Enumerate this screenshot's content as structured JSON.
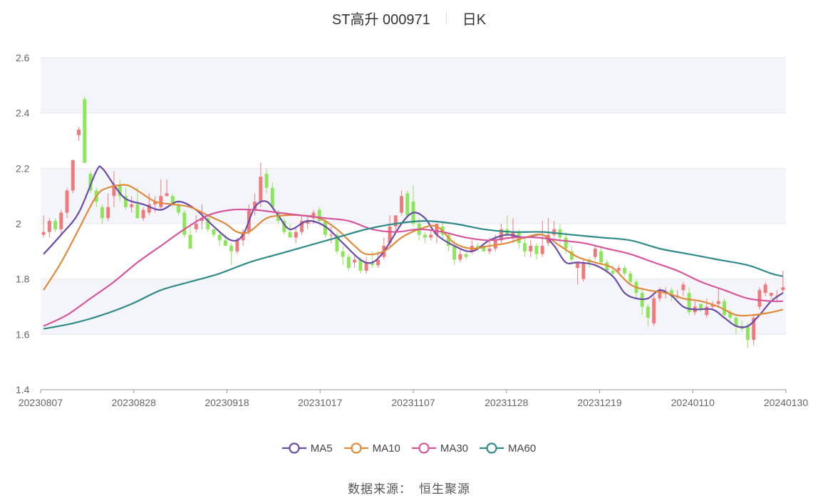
{
  "header": {
    "title": "ST高升 000971",
    "period": "日K"
  },
  "footer": {
    "source_label": "数据来源：",
    "source_name": "恒生聚源"
  },
  "chart_data": {
    "type": "candlestick",
    "title": "ST高升 000971",
    "period": "日K",
    "ylim": [
      1.4,
      2.6
    ],
    "yticks": [
      1.4,
      1.6,
      1.8,
      2,
      2.2,
      2.4,
      2.6
    ],
    "xticks": [
      "20230807",
      "20230828",
      "20230918",
      "20231017",
      "20231107",
      "20231128",
      "20231219",
      "20240110",
      "20240130"
    ],
    "grid": true,
    "legend_position": "bottom",
    "colors": {
      "up": "#f0797b",
      "down": "#8de65a",
      "MA5": "#6b4ba8",
      "MA10": "#e08a3c",
      "MA30": "#d6559c",
      "MA60": "#2f8a88",
      "band": "#f4f5fa",
      "axis": "#999999"
    },
    "series_names": [
      "MA5",
      "MA10",
      "MA30",
      "MA60"
    ],
    "dates": [
      "20230807",
      "20230828",
      "20230918",
      "20231017",
      "20231107",
      "20231128",
      "20231219",
      "20240110",
      "20240130"
    ],
    "moving_averages": {
      "MA5": [
        [
          0,
          1.89
        ],
        [
          3,
          1.96
        ],
        [
          6,
          2.04
        ],
        [
          9,
          2.19
        ],
        [
          10,
          2.2
        ],
        [
          12,
          2.14
        ],
        [
          14,
          2.09
        ],
        [
          17,
          2.07
        ],
        [
          20,
          2.05
        ],
        [
          23,
          2.08
        ],
        [
          26,
          2.05
        ],
        [
          29,
          1.99
        ],
        [
          32,
          1.94
        ],
        [
          34,
          1.96
        ],
        [
          36,
          2.06
        ],
        [
          38,
          2.08
        ],
        [
          40,
          2.03
        ],
        [
          42,
          1.98
        ],
        [
          45,
          2.01
        ],
        [
          48,
          1.99
        ],
        [
          51,
          1.93
        ],
        [
          54,
          1.87
        ],
        [
          56,
          1.86
        ],
        [
          58,
          1.9
        ],
        [
          61,
          2.0
        ],
        [
          63,
          2.04
        ],
        [
          65,
          2.02
        ],
        [
          67,
          1.96
        ],
        [
          70,
          1.92
        ],
        [
          73,
          1.9
        ],
        [
          76,
          1.94
        ],
        [
          79,
          1.96
        ],
        [
          82,
          1.95
        ],
        [
          85,
          1.96
        ],
        [
          87,
          1.92
        ],
        [
          89,
          1.86
        ],
        [
          91,
          1.86
        ],
        [
          94,
          1.85
        ],
        [
          97,
          1.81
        ],
        [
          99,
          1.75
        ],
        [
          101,
          1.73
        ],
        [
          103,
          1.73
        ],
        [
          105,
          1.76
        ],
        [
          107,
          1.74
        ],
        [
          109,
          1.7
        ],
        [
          111,
          1.69
        ],
        [
          114,
          1.69
        ],
        [
          116,
          1.66
        ],
        [
          118,
          1.63
        ],
        [
          120,
          1.63
        ],
        [
          122,
          1.67
        ],
        [
          124,
          1.72
        ],
        [
          126,
          1.75
        ]
      ],
      "MA10": [
        [
          0,
          1.76
        ],
        [
          3,
          1.86
        ],
        [
          6,
          1.98
        ],
        [
          9,
          2.1
        ],
        [
          11,
          2.13
        ],
        [
          14,
          2.14
        ],
        [
          16,
          2.12
        ],
        [
          19,
          2.08
        ],
        [
          22,
          2.07
        ],
        [
          25,
          2.06
        ],
        [
          28,
          2.03
        ],
        [
          31,
          2.0
        ],
        [
          33,
          1.97
        ],
        [
          35,
          1.97
        ],
        [
          38,
          2.02
        ],
        [
          41,
          2.03
        ],
        [
          44,
          2.03
        ],
        [
          47,
          2.02
        ],
        [
          50,
          1.98
        ],
        [
          53,
          1.92
        ],
        [
          55,
          1.89
        ],
        [
          58,
          1.9
        ],
        [
          61,
          1.95
        ],
        [
          64,
          1.98
        ],
        [
          67,
          1.99
        ],
        [
          70,
          1.93
        ],
        [
          73,
          1.91
        ],
        [
          76,
          1.92
        ],
        [
          79,
          1.93
        ],
        [
          82,
          1.95
        ],
        [
          85,
          1.96
        ],
        [
          88,
          1.92
        ],
        [
          91,
          1.88
        ],
        [
          94,
          1.86
        ],
        [
          97,
          1.84
        ],
        [
          100,
          1.78
        ],
        [
          103,
          1.76
        ],
        [
          106,
          1.75
        ],
        [
          109,
          1.73
        ],
        [
          112,
          1.72
        ],
        [
          115,
          1.7
        ],
        [
          118,
          1.67
        ],
        [
          121,
          1.67
        ],
        [
          124,
          1.68
        ],
        [
          126,
          1.69
        ]
      ],
      "MA30": [
        [
          0,
          1.63
        ],
        [
          4,
          1.67
        ],
        [
          8,
          1.73
        ],
        [
          12,
          1.79
        ],
        [
          16,
          1.86
        ],
        [
          20,
          1.92
        ],
        [
          24,
          1.98
        ],
        [
          28,
          2.03
        ],
        [
          32,
          2.05
        ],
        [
          36,
          2.05
        ],
        [
          40,
          2.04
        ],
        [
          44,
          2.03
        ],
        [
          48,
          2.02
        ],
        [
          52,
          2.01
        ],
        [
          56,
          1.98
        ],
        [
          60,
          1.97
        ],
        [
          64,
          1.98
        ],
        [
          68,
          1.97
        ],
        [
          72,
          1.95
        ],
        [
          76,
          1.94
        ],
        [
          80,
          1.95
        ],
        [
          84,
          1.95
        ],
        [
          88,
          1.94
        ],
        [
          92,
          1.93
        ],
        [
          96,
          1.91
        ],
        [
          100,
          1.89
        ],
        [
          104,
          1.86
        ],
        [
          108,
          1.83
        ],
        [
          112,
          1.79
        ],
        [
          116,
          1.76
        ],
        [
          120,
          1.73
        ],
        [
          124,
          1.72
        ],
        [
          126,
          1.72
        ]
      ],
      "MA60": [
        [
          0,
          1.62
        ],
        [
          5,
          1.64
        ],
        [
          10,
          1.67
        ],
        [
          15,
          1.71
        ],
        [
          20,
          1.76
        ],
        [
          25,
          1.79
        ],
        [
          30,
          1.82
        ],
        [
          35,
          1.86
        ],
        [
          40,
          1.89
        ],
        [
          45,
          1.92
        ],
        [
          50,
          1.95
        ],
        [
          55,
          1.98
        ],
        [
          60,
          2.0
        ],
        [
          65,
          2.01
        ],
        [
          70,
          2.0
        ],
        [
          75,
          1.98
        ],
        [
          80,
          1.97
        ],
        [
          85,
          1.97
        ],
        [
          90,
          1.96
        ],
        [
          95,
          1.95
        ],
        [
          100,
          1.94
        ],
        [
          105,
          1.91
        ],
        [
          110,
          1.89
        ],
        [
          115,
          1.87
        ],
        [
          120,
          1.85
        ],
        [
          124,
          1.82
        ],
        [
          126,
          1.81
        ]
      ]
    },
    "candles": [
      [
        1.96,
        1.97,
        1.95,
        2.03
      ],
      [
        1.97,
        2.01,
        1.95,
        2.02
      ],
      [
        2.01,
        1.98,
        1.97,
        2.02
      ],
      [
        1.98,
        2.04,
        1.96,
        2.05
      ],
      [
        2.04,
        2.12,
        2.02,
        2.13
      ],
      [
        2.12,
        2.23,
        2.11,
        2.23
      ],
      [
        2.32,
        2.34,
        2.3,
        2.35
      ],
      [
        2.45,
        2.22,
        2.22,
        2.46
      ],
      [
        2.18,
        2.12,
        2.11,
        2.19
      ],
      [
        2.12,
        2.08,
        2.06,
        2.13
      ],
      [
        2.06,
        2.02,
        2.0,
        2.07
      ],
      [
        2.02,
        2.06,
        2.01,
        2.11
      ],
      [
        2.1,
        2.14,
        2.06,
        2.19
      ],
      [
        2.14,
        2.1,
        2.08,
        2.16
      ],
      [
        2.1,
        2.06,
        2.05,
        2.13
      ],
      [
        2.06,
        2.07,
        2.04,
        2.1
      ],
      [
        2.07,
        2.02,
        2.02,
        2.13
      ],
      [
        2.02,
        2.05,
        2.01,
        2.06
      ],
      [
        2.04,
        2.07,
        2.03,
        2.11
      ],
      [
        2.07,
        2.08,
        2.04,
        2.1
      ],
      [
        2.06,
        2.1,
        2.05,
        2.16
      ],
      [
        2.1,
        2.11,
        2.1,
        2.16
      ],
      [
        2.1,
        2.07,
        2.06,
        2.11
      ],
      [
        2.07,
        2.04,
        2.03,
        2.08
      ],
      [
        2.04,
        1.96,
        1.95,
        2.05
      ],
      [
        1.96,
        1.91,
        1.91,
        1.99
      ],
      [
        1.98,
        2.0,
        1.97,
        2.03
      ],
      [
        2.01,
        2.02,
        1.98,
        2.07
      ],
      [
        2.02,
        1.98,
        1.97,
        2.03
      ],
      [
        1.98,
        1.96,
        1.95,
        1.98
      ],
      [
        1.96,
        1.94,
        1.92,
        1.97
      ],
      [
        1.94,
        1.92,
        1.92,
        1.96
      ],
      [
        1.92,
        1.9,
        1.85,
        1.93
      ],
      [
        1.9,
        1.94,
        1.89,
        1.95
      ],
      [
        1.94,
        1.97,
        1.92,
        1.98
      ],
      [
        1.97,
        2.05,
        1.96,
        2.07
      ],
      [
        2.05,
        2.08,
        2.03,
        2.11
      ],
      [
        2.08,
        2.17,
        2.06,
        2.22
      ],
      [
        2.18,
        2.13,
        2.11,
        2.2
      ],
      [
        2.13,
        2.06,
        2.05,
        2.15
      ],
      [
        2.04,
        2.01,
        2.0,
        2.05
      ],
      [
        2.01,
        1.97,
        1.96,
        2.02
      ],
      [
        1.97,
        1.95,
        1.95,
        2.0
      ],
      [
        1.95,
        1.97,
        1.93,
        1.99
      ],
      [
        1.97,
        2.01,
        1.96,
        2.03
      ],
      [
        2.0,
        2.01,
        1.98,
        2.03
      ],
      [
        2.02,
        2.04,
        2.0,
        2.05
      ],
      [
        2.05,
        2.01,
        2.0,
        2.06
      ],
      [
        2.01,
        1.96,
        1.95,
        2.02
      ],
      [
        1.96,
        1.96,
        1.93,
        1.99
      ],
      [
        1.96,
        1.9,
        1.89,
        1.97
      ],
      [
        1.9,
        1.88,
        1.85,
        1.92
      ],
      [
        1.88,
        1.84,
        1.83,
        1.89
      ],
      [
        1.86,
        1.87,
        1.84,
        1.89
      ],
      [
        1.87,
        1.83,
        1.82,
        1.88
      ],
      [
        1.83,
        1.86,
        1.82,
        1.88
      ],
      [
        1.86,
        1.85,
        1.84,
        1.9
      ],
      [
        1.85,
        1.87,
        1.84,
        1.9
      ],
      [
        1.88,
        1.92,
        1.87,
        1.95
      ],
      [
        1.93,
        1.99,
        1.92,
        2.03
      ],
      [
        1.99,
        2.03,
        1.97,
        2.03
      ],
      [
        2.04,
        2.1,
        2.03,
        2.12
      ],
      [
        2.11,
        2.03,
        2.02,
        2.12
      ],
      [
        2.08,
        2.0,
        1.99,
        2.14
      ],
      [
        2.0,
        1.96,
        1.94,
        2.02
      ],
      [
        1.96,
        1.95,
        1.93,
        1.97
      ],
      [
        1.95,
        1.96,
        1.94,
        1.98
      ],
      [
        1.96,
        2.0,
        1.93,
        2.0
      ],
      [
        1.99,
        1.96,
        1.94,
        2.01
      ],
      [
        1.96,
        1.92,
        1.9,
        1.97
      ],
      [
        1.92,
        1.87,
        1.85,
        1.94
      ],
      [
        1.87,
        1.89,
        1.86,
        1.91
      ],
      [
        1.89,
        1.88,
        1.87,
        1.9
      ],
      [
        1.9,
        1.92,
        1.89,
        1.94
      ],
      [
        1.92,
        1.91,
        1.9,
        1.93
      ],
      [
        1.92,
        1.9,
        1.9,
        1.93
      ],
      [
        1.9,
        1.91,
        1.89,
        1.95
      ],
      [
        1.91,
        1.94,
        1.9,
        1.96
      ],
      [
        1.94,
        1.98,
        1.93,
        2.0
      ],
      [
        1.98,
        1.96,
        1.95,
        2.03
      ],
      [
        1.95,
        1.97,
        1.93,
        2.02
      ],
      [
        1.97,
        1.93,
        1.91,
        1.98
      ],
      [
        1.93,
        1.9,
        1.88,
        1.95
      ],
      [
        1.9,
        1.92,
        1.88,
        1.94
      ],
      [
        1.92,
        1.89,
        1.87,
        1.93
      ],
      [
        1.89,
        1.92,
        1.88,
        2.01
      ],
      [
        1.93,
        1.96,
        1.92,
        2.02
      ],
      [
        1.96,
        1.98,
        1.95,
        2.01
      ],
      [
        1.98,
        1.95,
        1.93,
        2.0
      ],
      [
        1.95,
        1.91,
        1.89,
        1.97
      ],
      [
        1.9,
        1.87,
        1.86,
        1.92
      ],
      [
        1.84,
        1.86,
        1.78,
        1.86
      ],
      [
        1.8,
        1.86,
        1.79,
        1.87
      ],
      [
        1.87,
        1.86,
        1.84,
        1.88
      ],
      [
        1.88,
        1.91,
        1.87,
        1.92
      ],
      [
        1.9,
        1.86,
        1.85,
        1.92
      ],
      [
        1.86,
        1.83,
        1.82,
        1.87
      ],
      [
        1.83,
        1.82,
        1.81,
        1.85
      ],
      [
        1.83,
        1.84,
        1.82,
        1.85
      ],
      [
        1.84,
        1.82,
        1.81,
        1.85
      ],
      [
        1.82,
        1.79,
        1.78,
        1.83
      ],
      [
        1.79,
        1.75,
        1.73,
        1.8
      ],
      [
        1.75,
        1.7,
        1.67,
        1.76
      ],
      [
        1.7,
        1.66,
        1.63,
        1.71
      ],
      [
        1.64,
        1.73,
        1.63,
        1.74
      ],
      [
        1.73,
        1.76,
        1.72,
        1.77
      ],
      [
        1.75,
        1.75,
        1.73,
        1.77
      ],
      [
        1.76,
        1.74,
        1.72,
        1.77
      ],
      [
        1.74,
        1.74,
        1.73,
        1.76
      ],
      [
        1.76,
        1.78,
        1.74,
        1.79
      ],
      [
        1.75,
        1.68,
        1.67,
        1.77
      ],
      [
        1.68,
        1.7,
        1.67,
        1.72
      ],
      [
        1.71,
        1.69,
        1.68,
        1.71
      ],
      [
        1.67,
        1.7,
        1.66,
        1.73
      ],
      [
        1.7,
        1.71,
        1.69,
        1.72
      ],
      [
        1.71,
        1.72,
        1.7,
        1.77
      ],
      [
        1.72,
        1.67,
        1.66,
        1.73
      ],
      [
        1.68,
        1.66,
        1.64,
        1.69
      ],
      [
        1.66,
        1.63,
        1.6,
        1.67
      ],
      [
        1.63,
        1.62,
        1.61,
        1.65
      ],
      [
        1.63,
        1.58,
        1.55,
        1.64
      ],
      [
        1.58,
        1.66,
        1.56,
        1.67
      ],
      [
        1.7,
        1.76,
        1.69,
        1.77
      ],
      [
        1.75,
        1.78,
        1.74,
        1.79
      ],
      [
        1.74,
        1.75,
        1.73,
        1.75
      ],
      [
        1.74,
        1.74,
        1.72,
        1.76
      ],
      [
        1.76,
        1.77,
        1.75,
        1.83
      ]
    ]
  }
}
